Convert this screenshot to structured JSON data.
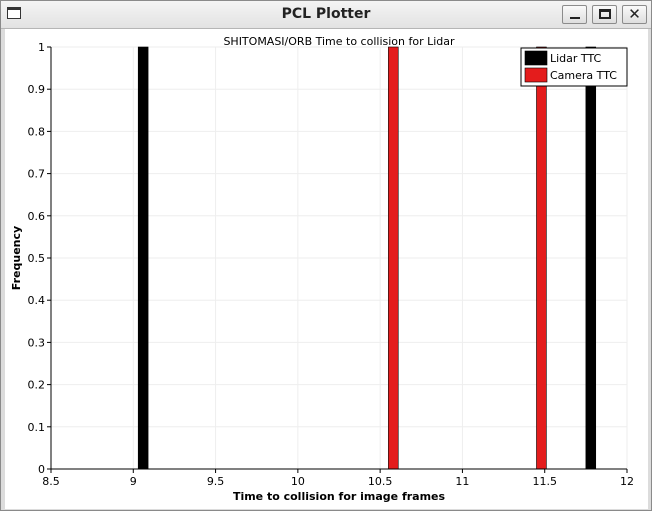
{
  "window": {
    "title": "PCL Plotter",
    "icon": "window-app-icon",
    "controls": {
      "minimize": "minimize-icon",
      "maximize": "maximize-icon",
      "close_glyph": "✕"
    }
  },
  "chart_data": {
    "type": "bar",
    "title": "SHITOMASI/ORB Time to collision for Lidar",
    "xlabel": "Time to collision for image frames",
    "ylabel": "Frequency",
    "xlim": [
      8.5,
      12
    ],
    "ylim": [
      0,
      1
    ],
    "x_ticks": [
      "8.5",
      "9",
      "9.5",
      "10",
      "10.5",
      "11",
      "11.5",
      "12"
    ],
    "y_ticks": [
      "0",
      "0.1",
      "0.2",
      "0.3",
      "0.4",
      "0.5",
      "0.6",
      "0.7",
      "0.8",
      "0.9",
      "1"
    ],
    "grid": true,
    "legend_position": "top-right",
    "series": [
      {
        "name": "Lidar TTC",
        "color": "#000000",
        "bars": [
          {
            "x": 9.06,
            "value": 1
          },
          {
            "x": 11.78,
            "value": 1
          }
        ]
      },
      {
        "name": "Camera TTC",
        "color": "#e41c1c",
        "bars": [
          {
            "x": 10.58,
            "value": 1
          },
          {
            "x": 11.48,
            "value": 1
          }
        ]
      }
    ]
  }
}
